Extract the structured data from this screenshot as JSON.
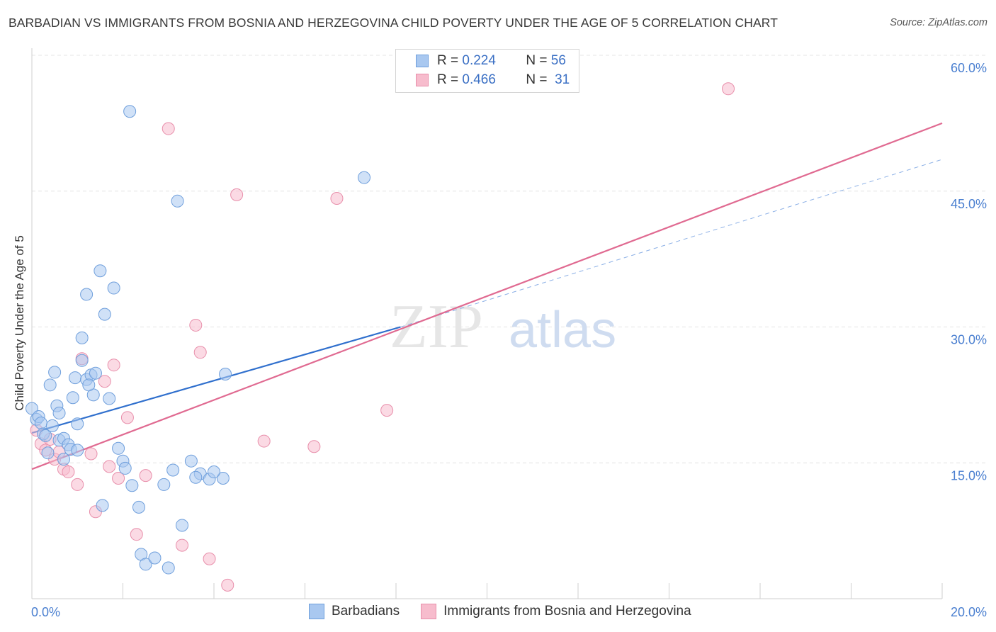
{
  "title": "BARBADIAN VS IMMIGRANTS FROM BOSNIA AND HERZEGOVINA CHILD POVERTY UNDER THE AGE OF 5 CORRELATION CHART",
  "source": "Source: ZipAtlas.com",
  "watermark": {
    "zip": "ZIP",
    "atlas": "atlas"
  },
  "legend": {
    "rows": [
      {
        "r_label": "R =",
        "r_value": "0.224",
        "n_label": "N =",
        "n_value": "56"
      },
      {
        "r_label": "R =",
        "r_value": "0.466",
        "n_label": "N =",
        "n_value": "31"
      }
    ]
  },
  "bottom_legend": {
    "series1": "Barbadians",
    "series2": "Immigrants from Bosnia and Herzegovina"
  },
  "colors": {
    "series1_fill": "#a9c8f0",
    "series1_stroke": "#6f9fdc",
    "series1_line": "#2f6fcd",
    "series2_fill": "#f7bccd",
    "series2_stroke": "#e88fab",
    "series2_line": "#e06a91",
    "grid": "#e4e4e4",
    "tick_text": "#4a7fd0"
  },
  "chart_data": {
    "type": "scatter",
    "title": "BARBADIAN VS IMMIGRANTS FROM BOSNIA AND HERZEGOVINA CHILD POVERTY UNDER THE AGE OF 5 CORRELATION CHART",
    "xlabel": "",
    "ylabel": "Child Poverty Under the Age of 5",
    "xlim": [
      0,
      20
    ],
    "ylim": [
      0,
      60
    ],
    "x_tick_labels": [
      {
        "value": 0,
        "label": "0.0%"
      },
      {
        "value": 20,
        "label": "20.0%"
      }
    ],
    "y_tick_labels": [
      {
        "value": 15,
        "label": "15.0%"
      },
      {
        "value": 30,
        "label": "30.0%"
      },
      {
        "value": 45,
        "label": "45.0%"
      },
      {
        "value": 60,
        "label": "60.0%"
      }
    ],
    "series": [
      {
        "name": "Barbadians",
        "R": 0.224,
        "N": 56,
        "trend": {
          "x0": 0,
          "y0": 18.3,
          "x1": 8.1,
          "y1": 30.0,
          "dashed_to_x": 20,
          "dashed_to_y": 48.5
        },
        "points": [
          [
            0.0,
            21.0
          ],
          [
            0.1,
            19.8
          ],
          [
            0.15,
            20.1
          ],
          [
            0.2,
            19.4
          ],
          [
            0.25,
            18.2
          ],
          [
            0.3,
            18.0
          ],
          [
            0.35,
            16.1
          ],
          [
            0.4,
            23.6
          ],
          [
            0.45,
            19.1
          ],
          [
            0.5,
            25.0
          ],
          [
            0.55,
            21.3
          ],
          [
            0.6,
            20.5
          ],
          [
            0.6,
            17.5
          ],
          [
            0.7,
            17.7
          ],
          [
            0.7,
            15.4
          ],
          [
            0.8,
            17.0
          ],
          [
            0.85,
            16.5
          ],
          [
            0.9,
            22.2
          ],
          [
            0.95,
            24.4
          ],
          [
            1.0,
            16.4
          ],
          [
            1.0,
            19.3
          ],
          [
            1.1,
            28.8
          ],
          [
            1.2,
            24.2
          ],
          [
            1.3,
            24.7
          ],
          [
            1.35,
            22.5
          ],
          [
            1.4,
            24.9
          ],
          [
            1.5,
            36.2
          ],
          [
            1.6,
            31.4
          ],
          [
            1.7,
            22.1
          ],
          [
            1.8,
            34.3
          ],
          [
            1.9,
            16.6
          ],
          [
            2.0,
            15.2
          ],
          [
            2.05,
            14.4
          ],
          [
            2.2,
            12.5
          ],
          [
            2.35,
            10.1
          ],
          [
            2.4,
            4.9
          ],
          [
            2.5,
            3.8
          ],
          [
            2.7,
            4.5
          ],
          [
            2.9,
            12.6
          ],
          [
            3.0,
            3.4
          ],
          [
            3.1,
            14.2
          ],
          [
            3.3,
            8.1
          ],
          [
            3.5,
            15.2
          ],
          [
            3.7,
            13.8
          ],
          [
            2.15,
            53.8
          ],
          [
            3.2,
            43.9
          ],
          [
            3.6,
            13.4
          ],
          [
            3.9,
            13.2
          ],
          [
            1.2,
            33.6
          ],
          [
            4.2,
            13.3
          ],
          [
            1.25,
            23.6
          ],
          [
            4.0,
            14.0
          ],
          [
            1.1,
            26.3
          ],
          [
            1.55,
            10.3
          ],
          [
            4.25,
            24.8
          ],
          [
            7.3,
            46.5
          ]
        ]
      },
      {
        "name": "Immigrants from Bosnia and Herzegovina",
        "R": 0.466,
        "N": 31,
        "trend": {
          "x0": 0,
          "y0": 14.3,
          "x1": 20,
          "y1": 52.5
        },
        "points": [
          [
            0.1,
            18.6
          ],
          [
            0.2,
            17.1
          ],
          [
            0.3,
            16.4
          ],
          [
            0.4,
            17.6
          ],
          [
            0.5,
            15.4
          ],
          [
            0.6,
            16.2
          ],
          [
            0.7,
            14.3
          ],
          [
            0.8,
            14.0
          ],
          [
            1.0,
            12.6
          ],
          [
            1.1,
            26.5
          ],
          [
            1.3,
            16.0
          ],
          [
            1.4,
            9.6
          ],
          [
            1.6,
            24.0
          ],
          [
            1.7,
            14.6
          ],
          [
            1.8,
            25.8
          ],
          [
            1.9,
            13.3
          ],
          [
            2.1,
            20.0
          ],
          [
            2.3,
            7.1
          ],
          [
            2.5,
            13.6
          ],
          [
            3.0,
            51.9
          ],
          [
            3.3,
            5.9
          ],
          [
            3.6,
            30.2
          ],
          [
            3.7,
            27.2
          ],
          [
            3.9,
            4.4
          ],
          [
            4.3,
            1.5
          ],
          [
            4.5,
            44.6
          ],
          [
            5.1,
            17.4
          ],
          [
            6.2,
            16.8
          ],
          [
            6.7,
            44.2
          ],
          [
            7.8,
            20.8
          ],
          [
            15.3,
            56.3
          ]
        ]
      }
    ]
  }
}
